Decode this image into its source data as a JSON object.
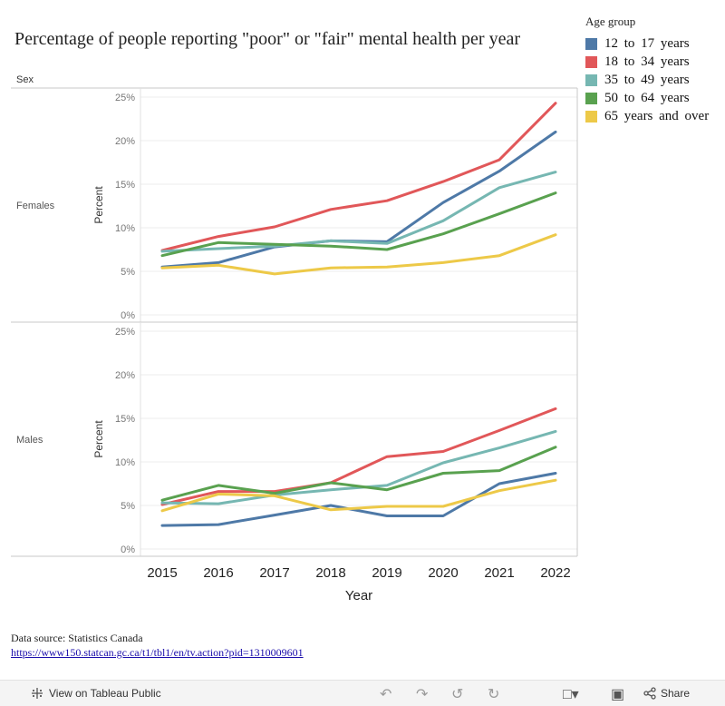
{
  "title": "Percentage of people reporting \"poor\" or \"fair\" mental health per year",
  "legend": {
    "title": "Age group",
    "items": [
      {
        "label": "12 to 17 years",
        "color": "#4e79a7"
      },
      {
        "label": "18 to 34 years",
        "color": "#e15759"
      },
      {
        "label": "35 to 49 years",
        "color": "#76b7b2"
      },
      {
        "label": "50 to 64 years",
        "color": "#59a14f"
      },
      {
        "label": "65 years and over",
        "color": "#edc948"
      }
    ]
  },
  "sex_header": "Sex",
  "chart_data": {
    "type": "line",
    "xlabel": "Year",
    "ylabel": "Percent",
    "x": [
      2015,
      2016,
      2017,
      2018,
      2019,
      2020,
      2021,
      2022
    ],
    "yticks": [
      "0%",
      "5%",
      "10%",
      "15%",
      "20%",
      "25%"
    ],
    "ylim": [
      0,
      25
    ],
    "panels": [
      {
        "label": "Females",
        "series": [
          {
            "name": "12 to 17 years",
            "values": [
              5.5,
              6.0,
              7.8,
              8.5,
              8.4,
              12.9,
              16.5,
              21.0
            ]
          },
          {
            "name": "18 to 34 years",
            "values": [
              7.4,
              9.0,
              10.1,
              12.1,
              13.1,
              15.3,
              17.8,
              24.3
            ]
          },
          {
            "name": "35 to 49 years",
            "values": [
              7.3,
              7.6,
              7.9,
              8.5,
              8.2,
              10.8,
              14.6,
              16.4
            ]
          },
          {
            "name": "50 to 64 years",
            "values": [
              6.8,
              8.3,
              8.1,
              7.9,
              7.5,
              9.3,
              11.6,
              14.0
            ]
          },
          {
            "name": "65 years and over",
            "values": [
              5.4,
              5.7,
              4.7,
              5.4,
              5.5,
              6.0,
              6.8,
              9.2
            ]
          }
        ]
      },
      {
        "label": "Males",
        "series": [
          {
            "name": "12 to 17 years",
            "values": [
              2.7,
              2.8,
              3.9,
              5.0,
              3.8,
              3.8,
              7.5,
              8.7
            ]
          },
          {
            "name": "18 to 34 years",
            "values": [
              5.1,
              6.6,
              6.6,
              7.6,
              10.6,
              11.2,
              13.6,
              16.1
            ]
          },
          {
            "name": "35 to 49 years",
            "values": [
              5.3,
              5.2,
              6.2,
              6.8,
              7.3,
              9.9,
              11.6,
              13.5
            ]
          },
          {
            "name": "50 to 64 years",
            "values": [
              5.6,
              7.3,
              6.4,
              7.6,
              6.8,
              8.7,
              9.0,
              11.7
            ]
          },
          {
            "name": "65 years and over",
            "values": [
              4.4,
              6.3,
              6.1,
              4.5,
              4.9,
              4.9,
              6.7,
              7.9
            ]
          }
        ]
      }
    ]
  },
  "source": {
    "text": "Data source: Statistics Canada",
    "link": "https://www150.statcan.gc.ca/t1/tbl1/en/tv.action?pid=1310009601"
  },
  "toolbar": {
    "view_label": "View on Tableau Public",
    "share_label": "Share"
  }
}
